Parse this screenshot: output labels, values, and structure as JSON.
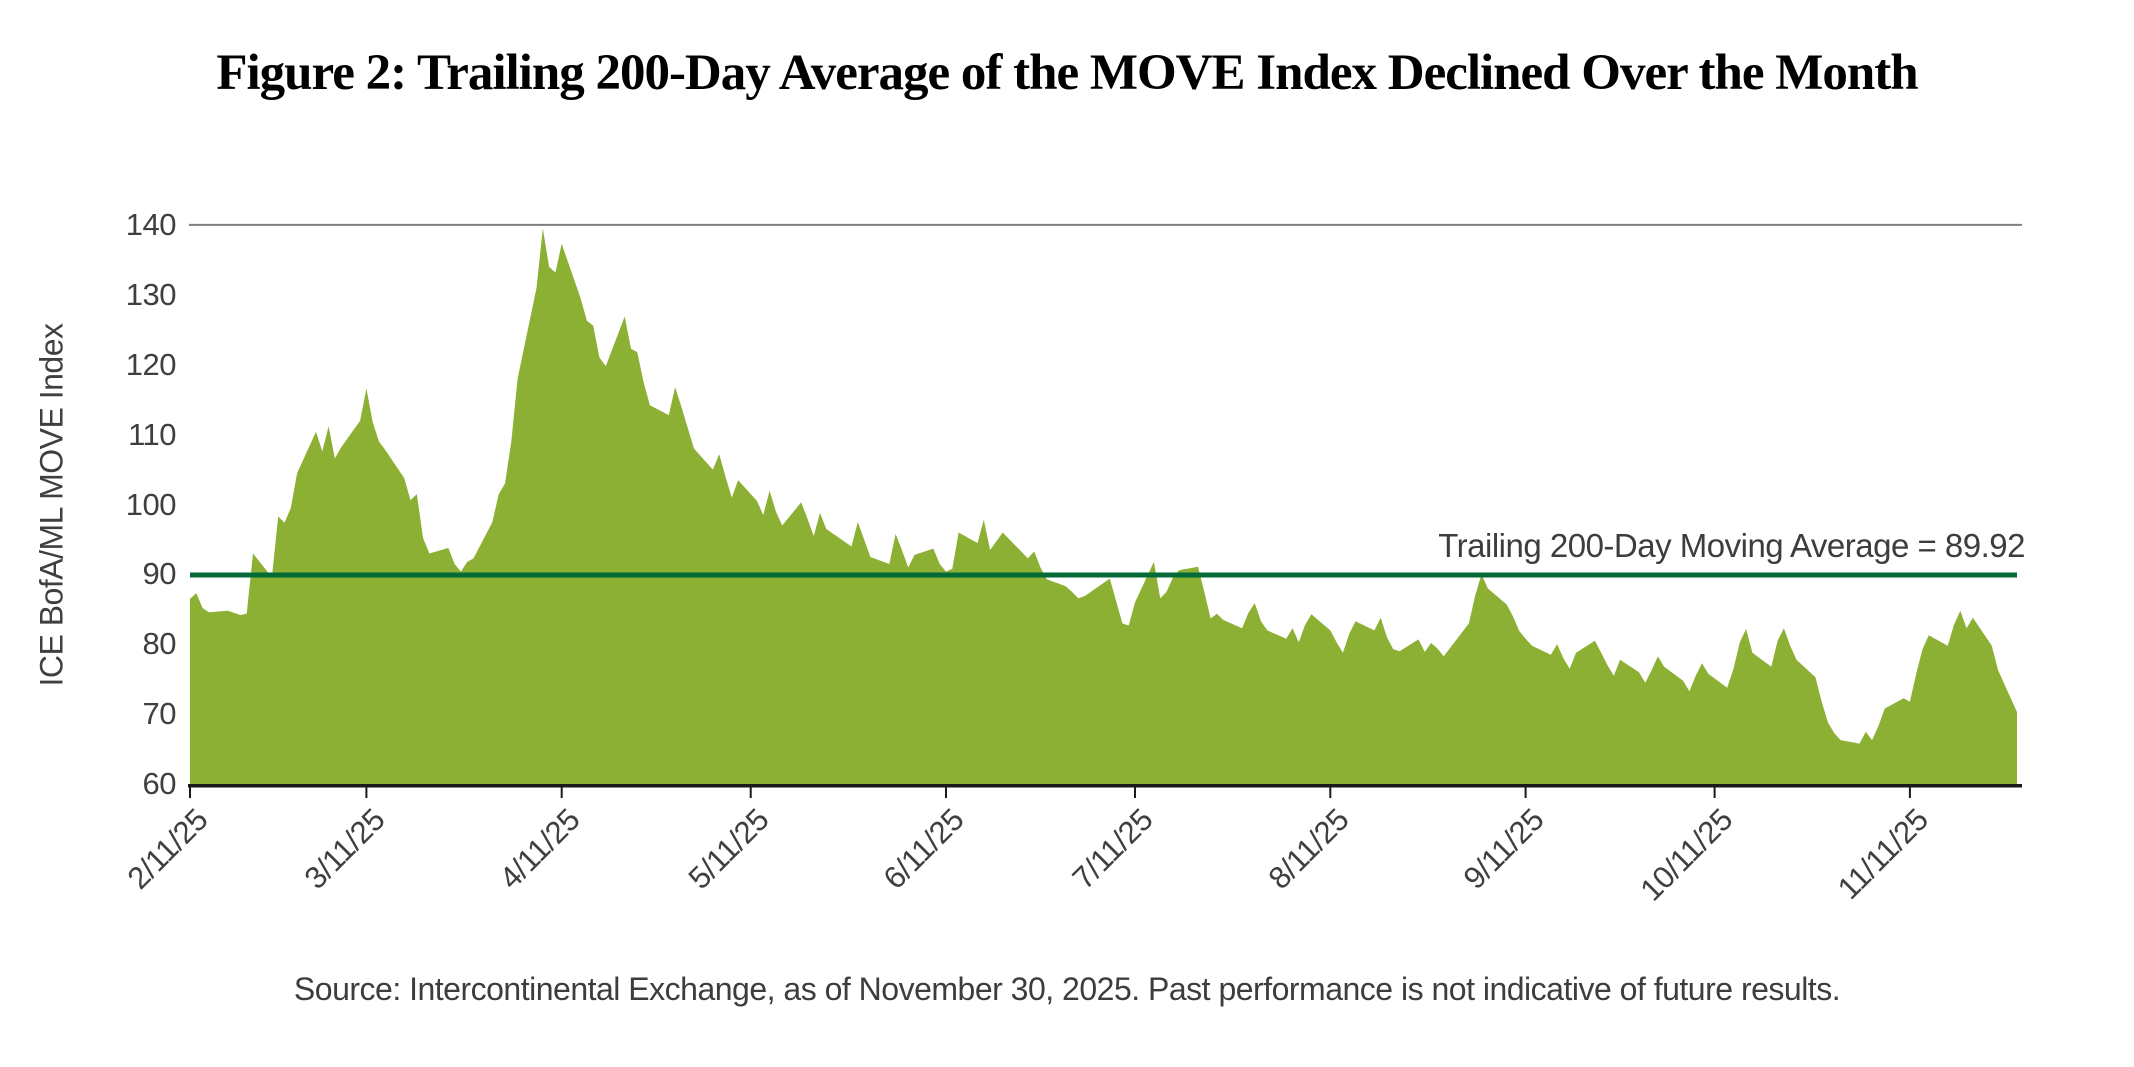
{
  "title": "Figure 2: Trailing 200-Day Average of the MOVE Index Declined Over the Month",
  "source_note": "Source: Intercontinental Exchange, as of November 30, 2025. Past performance is not indicative of future results.",
  "chart_data": {
    "type": "area",
    "title": "Figure 2: Trailing 200-Day Average of the MOVE Index Declined Over the Month",
    "xlabel": "",
    "ylabel": "ICE BofA/ML MOVE Index",
    "ylim": [
      60,
      140
    ],
    "y_ticks": [
      140,
      130,
      120,
      110,
      100,
      90,
      80,
      70,
      60
    ],
    "x_range": [
      "2/11/25",
      "11/28/25"
    ],
    "grid": "off",
    "legend": "none",
    "colors": {
      "area_fill": "#8CB033",
      "ma_line": "#046A38",
      "top_border": "#7f7f7f",
      "x_axis": "#1a1a1a",
      "tick_text": "#3f3f3f"
    },
    "moving_average": {
      "label": "Trailing 200-Day Moving Average = 89.92",
      "value": 89.92
    },
    "x_ticks": [
      {
        "label": "2/11/25",
        "day": 0
      },
      {
        "label": "3/11/25",
        "day": 28
      },
      {
        "label": "4/11/25",
        "day": 59
      },
      {
        "label": "5/11/25",
        "day": 89
      },
      {
        "label": "6/11/25",
        "day": 120
      },
      {
        "label": "7/11/25",
        "day": 150
      },
      {
        "label": "8/11/25",
        "day": 181
      },
      {
        "label": "9/11/25",
        "day": 212
      },
      {
        "label": "10/11/25",
        "day": 242
      },
      {
        "label": "11/11/25",
        "day": 273
      }
    ],
    "series": {
      "name": "ICE BofA/ML MOVE Index",
      "x_unit": "days since 2/11/25",
      "points": [
        [
          0,
          86.5
        ],
        [
          1,
          87.3
        ],
        [
          2,
          85.2
        ],
        [
          3,
          84.6
        ],
        [
          6,
          84.8
        ],
        [
          7,
          84.5
        ],
        [
          8,
          84.2
        ],
        [
          9,
          84.4
        ],
        [
          10,
          93.0
        ],
        [
          13,
          89.6
        ],
        [
          14,
          98.3
        ],
        [
          15,
          97.4
        ],
        [
          16,
          99.5
        ],
        [
          17,
          104.5
        ],
        [
          20,
          110.4
        ],
        [
          21,
          107.6
        ],
        [
          22,
          111.2
        ],
        [
          23,
          106.6
        ],
        [
          24,
          108.2
        ],
        [
          27,
          112.0
        ],
        [
          28,
          116.6
        ],
        [
          29,
          111.8
        ],
        [
          30,
          109.0
        ],
        [
          31,
          107.8
        ],
        [
          34,
          103.8
        ],
        [
          35,
          100.6
        ],
        [
          36,
          101.5
        ],
        [
          37,
          95.2
        ],
        [
          38,
          93.0
        ],
        [
          41,
          93.8
        ],
        [
          42,
          91.5
        ],
        [
          43,
          90.4
        ],
        [
          44,
          91.8
        ],
        [
          45,
          92.3
        ],
        [
          48,
          97.5
        ],
        [
          49,
          101.5
        ],
        [
          50,
          103.0
        ],
        [
          51,
          109.0
        ],
        [
          52,
          118.0
        ],
        [
          55,
          131.0
        ],
        [
          56,
          139.5
        ],
        [
          57,
          134.0
        ],
        [
          58,
          133.2
        ],
        [
          59,
          137.3
        ],
        [
          62,
          129.5
        ],
        [
          63,
          126.3
        ],
        [
          64,
          125.6
        ],
        [
          65,
          121.0
        ],
        [
          66,
          119.8
        ],
        [
          69,
          126.9
        ],
        [
          70,
          122.3
        ],
        [
          71,
          121.8
        ],
        [
          72,
          117.5
        ],
        [
          73,
          114.2
        ],
        [
          76,
          112.8
        ],
        [
          77,
          116.8
        ],
        [
          78,
          114.0
        ],
        [
          79,
          111.0
        ],
        [
          80,
          108.0
        ],
        [
          83,
          105.0
        ],
        [
          84,
          107.2
        ],
        [
          85,
          104.0
        ],
        [
          86,
          101.0
        ],
        [
          87,
          103.5
        ],
        [
          90,
          100.5
        ],
        [
          91,
          98.5
        ],
        [
          92,
          102.0
        ],
        [
          93,
          99.0
        ],
        [
          94,
          97.0
        ],
        [
          97,
          100.3
        ],
        [
          98,
          98.0
        ],
        [
          99,
          95.5
        ],
        [
          100,
          98.8
        ],
        [
          101,
          96.5
        ],
        [
          105,
          94.0
        ],
        [
          106,
          97.5
        ],
        [
          107,
          95.0
        ],
        [
          108,
          92.5
        ],
        [
          111,
          91.5
        ],
        [
          112,
          95.8
        ],
        [
          113,
          93.5
        ],
        [
          114,
          91.0
        ],
        [
          115,
          92.8
        ],
        [
          118,
          93.7
        ],
        [
          119,
          91.5
        ],
        [
          120,
          90.4
        ],
        [
          121,
          90.8
        ],
        [
          122,
          96.0
        ],
        [
          125,
          94.5
        ],
        [
          126,
          97.8
        ],
        [
          127,
          93.5
        ],
        [
          129,
          96.0
        ],
        [
          133,
          92.3
        ],
        [
          134,
          93.3
        ],
        [
          135,
          91.0
        ],
        [
          136,
          89.3
        ],
        [
          139,
          88.3
        ],
        [
          140,
          87.5
        ],
        [
          141,
          86.6
        ],
        [
          142,
          86.9
        ],
        [
          146,
          89.4
        ],
        [
          148,
          83.0
        ],
        [
          149,
          82.7
        ],
        [
          150,
          86.0
        ],
        [
          153,
          91.8
        ],
        [
          154,
          86.6
        ],
        [
          155,
          87.5
        ],
        [
          156,
          89.5
        ],
        [
          157,
          90.6
        ],
        [
          160,
          91.1
        ],
        [
          161,
          87.5
        ],
        [
          162,
          83.7
        ],
        [
          163,
          84.4
        ],
        [
          164,
          83.5
        ],
        [
          167,
          82.3
        ],
        [
          168,
          84.5
        ],
        [
          169,
          85.9
        ],
        [
          170,
          83.3
        ],
        [
          171,
          82.0
        ],
        [
          174,
          80.8
        ],
        [
          175,
          82.3
        ],
        [
          176,
          80.3
        ],
        [
          177,
          82.8
        ],
        [
          178,
          84.3
        ],
        [
          181,
          82.0
        ],
        [
          182,
          80.3
        ],
        [
          183,
          78.8
        ],
        [
          184,
          81.5
        ],
        [
          185,
          83.3
        ],
        [
          188,
          82.0
        ],
        [
          189,
          83.8
        ],
        [
          190,
          81.0
        ],
        [
          191,
          79.3
        ],
        [
          192,
          79.0
        ],
        [
          195,
          80.7
        ],
        [
          196,
          78.9
        ],
        [
          197,
          80.2
        ],
        [
          198,
          79.4
        ],
        [
          199,
          78.3
        ],
        [
          203,
          83.0
        ],
        [
          204,
          87.0
        ],
        [
          205,
          90.0
        ],
        [
          206,
          88.0
        ],
        [
          209,
          85.7
        ],
        [
          210,
          84.0
        ],
        [
          211,
          81.9
        ],
        [
          212,
          80.8
        ],
        [
          213,
          79.8
        ],
        [
          216,
          78.5
        ],
        [
          217,
          80.0
        ],
        [
          218,
          78.0
        ],
        [
          219,
          76.5
        ],
        [
          220,
          78.8
        ],
        [
          223,
          80.5
        ],
        [
          224,
          78.8
        ],
        [
          225,
          77.0
        ],
        [
          226,
          75.5
        ],
        [
          227,
          77.8
        ],
        [
          230,
          76.0
        ],
        [
          231,
          74.5
        ],
        [
          232,
          76.3
        ],
        [
          233,
          78.3
        ],
        [
          234,
          76.8
        ],
        [
          237,
          74.8
        ],
        [
          238,
          73.3
        ],
        [
          239,
          75.5
        ],
        [
          240,
          77.3
        ],
        [
          241,
          75.8
        ],
        [
          244,
          73.8
        ],
        [
          245,
          76.5
        ],
        [
          246,
          80.3
        ],
        [
          247,
          82.2
        ],
        [
          248,
          78.8
        ],
        [
          251,
          76.8
        ],
        [
          252,
          80.5
        ],
        [
          253,
          82.3
        ],
        [
          254,
          79.8
        ],
        [
          255,
          77.8
        ],
        [
          258,
          75.3
        ],
        [
          259,
          71.8
        ],
        [
          260,
          68.8
        ],
        [
          261,
          67.3
        ],
        [
          262,
          66.3
        ],
        [
          265,
          65.8
        ],
        [
          266,
          67.5
        ],
        [
          267,
          66.3
        ],
        [
          268,
          68.3
        ],
        [
          269,
          70.8
        ],
        [
          272,
          72.3
        ],
        [
          273,
          71.8
        ],
        [
          274,
          75.8
        ],
        [
          275,
          79.3
        ],
        [
          276,
          81.3
        ],
        [
          279,
          79.8
        ],
        [
          280,
          82.8
        ],
        [
          281,
          84.8
        ],
        [
          282,
          82.3
        ],
        [
          283,
          83.8
        ],
        [
          286,
          79.8
        ],
        [
          287,
          76.3
        ],
        [
          288,
          74.3
        ],
        [
          290,
          70.3
        ]
      ]
    }
  }
}
